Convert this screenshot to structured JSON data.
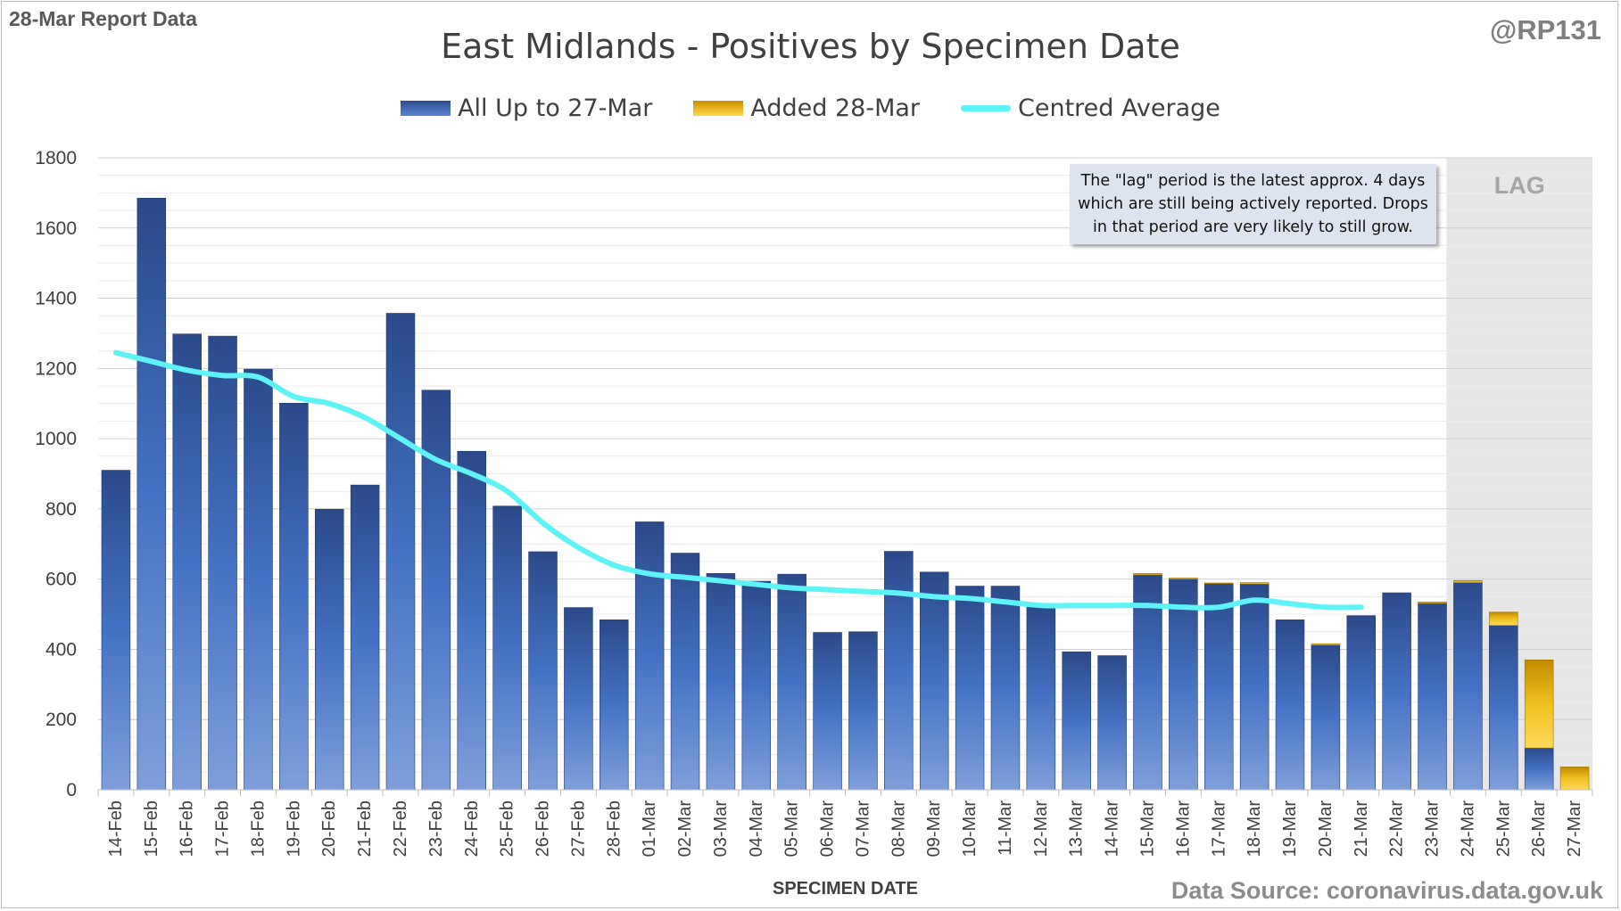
{
  "header": {
    "report_label": "28-Mar Report Data",
    "handle": "@RP131",
    "title": "East Midlands - Positives by Specimen Date"
  },
  "legend": {
    "all_label": "All Up to 27-Mar",
    "added_label": "Added 28-Mar",
    "avg_label": "Centred Average"
  },
  "annotation": {
    "note": "The \"lag\" period is the latest approx. 4 days which are still being actively reported. Drops in that period are very likely to still grow.",
    "lag_label": "LAG"
  },
  "footer": {
    "source": "Data Source: coronavirus.data.gov.uk"
  },
  "chart_data": {
    "type": "bar",
    "title": "East Midlands - Positives by Specimen Date",
    "xlabel": "SPECIMEN DATE",
    "ylabel": "",
    "ylim": [
      0,
      1800
    ],
    "yticks": [
      0,
      200,
      400,
      600,
      800,
      1000,
      1200,
      1400,
      1600,
      1800
    ],
    "grid": true,
    "stacked": true,
    "legend_position": "top",
    "categories": [
      "14-Feb",
      "15-Feb",
      "16-Feb",
      "17-Feb",
      "18-Feb",
      "19-Feb",
      "20-Feb",
      "21-Feb",
      "22-Feb",
      "23-Feb",
      "24-Feb",
      "25-Feb",
      "26-Feb",
      "27-Feb",
      "28-Feb",
      "01-Mar",
      "02-Mar",
      "03-Mar",
      "04-Mar",
      "05-Mar",
      "06-Mar",
      "07-Mar",
      "08-Mar",
      "09-Mar",
      "10-Mar",
      "11-Mar",
      "12-Mar",
      "13-Mar",
      "14-Mar",
      "15-Mar",
      "16-Mar",
      "17-Mar",
      "18-Mar",
      "19-Mar",
      "20-Mar",
      "21-Mar",
      "22-Mar",
      "23-Mar",
      "24-Mar",
      "25-Mar",
      "26-Mar",
      "27-Mar"
    ],
    "series": [
      {
        "name": "All Up to 27-Mar",
        "color": "#3a63ad",
        "values": [
          910,
          1685,
          1298,
          1292,
          1198,
          1101,
          799,
          868,
          1357,
          1138,
          964,
          808,
          678,
          519,
          484,
          763,
          674,
          616,
          594,
          614,
          448,
          450,
          679,
          620,
          580,
          580,
          524,
          393,
          382,
          612,
          600,
          587,
          586,
          484,
          412,
          496,
          561,
          531,
          590,
          468,
          119,
          0
        ]
      },
      {
        "name": "Added 28-Mar",
        "color": "#e3b210",
        "values": [
          0,
          0,
          0,
          0,
          0,
          0,
          0,
          0,
          0,
          0,
          0,
          0,
          0,
          0,
          0,
          0,
          0,
          0,
          0,
          0,
          0,
          0,
          0,
          0,
          0,
          0,
          0,
          0,
          0,
          4,
          3,
          2,
          4,
          0,
          4,
          0,
          0,
          4,
          6,
          38,
          251,
          65
        ]
      },
      {
        "name": "Centred Average",
        "color": "#5ef3f6",
        "type": "line",
        "values": [
          1245,
          1220,
          1195,
          1180,
          1175,
          1120,
          1100,
          1060,
          1000,
          940,
          900,
          850,
          760,
          690,
          640,
          615,
          605,
          595,
          585,
          575,
          570,
          565,
          560,
          550,
          545,
          535,
          525,
          525,
          525,
          525,
          520,
          520,
          540,
          530,
          520,
          520,
          null,
          null,
          null,
          null,
          null,
          null
        ]
      }
    ],
    "lag_period": [
      "24-Mar",
      "27-Mar"
    ]
  }
}
